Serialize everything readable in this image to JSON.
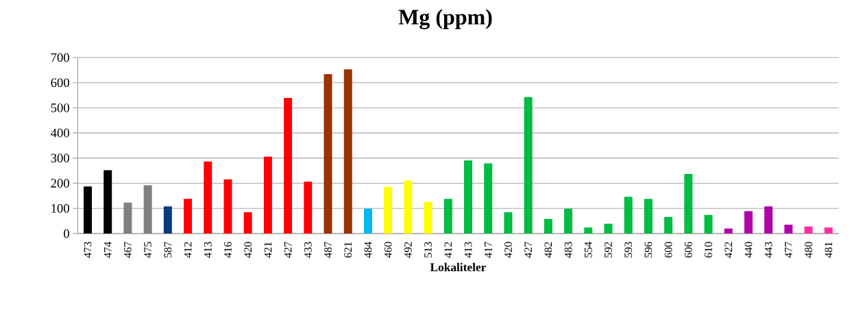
{
  "chart_data": {
    "type": "bar",
    "title": "Mg (ppm)",
    "xlabel": "Lokaliteler",
    "categories": [
      "473",
      "474",
      "467",
      "475",
      "587",
      "412",
      "413",
      "416",
      "420",
      "421",
      "427",
      "433",
      "487",
      "621",
      "484",
      "460",
      "492",
      "513",
      "412",
      "413",
      "417",
      "420",
      "427",
      "482",
      "483",
      "554",
      "592",
      "593",
      "596",
      "600",
      "606",
      "610",
      "422",
      "440",
      "443",
      "477",
      "480",
      "481"
    ],
    "values": [
      187,
      252,
      123,
      192,
      108,
      138,
      287,
      215,
      85,
      306,
      539,
      206,
      634,
      653,
      99,
      185,
      211,
      126,
      138,
      291,
      279,
      85,
      543,
      58,
      99,
      24,
      39,
      146,
      138,
      66,
      237,
      74,
      20,
      89,
      108,
      35,
      28,
      24
    ],
    "colors": [
      "#000000",
      "#000000",
      "#808080",
      "#808080",
      "#0a3a7a",
      "#ff0000",
      "#ff0000",
      "#ff0000",
      "#ff0000",
      "#ff0000",
      "#ff0000",
      "#ff0000",
      "#993300",
      "#993300",
      "#00b8f0",
      "#ffff00",
      "#ffff00",
      "#ffff00",
      "#00bb44",
      "#00bb44",
      "#00bb44",
      "#00bb44",
      "#00bb44",
      "#00bb44",
      "#00bb44",
      "#00bb44",
      "#00bb44",
      "#00bb44",
      "#00bb44",
      "#00bb44",
      "#00bb44",
      "#00bb44",
      "#b000a8",
      "#b000a8",
      "#b000a8",
      "#b000a8",
      "#ff2fa0",
      "#ff2fa0"
    ],
    "ylim": [
      0,
      700
    ],
    "yticks": [
      0,
      100,
      200,
      300,
      400,
      500,
      600,
      700
    ],
    "grid": "y"
  }
}
